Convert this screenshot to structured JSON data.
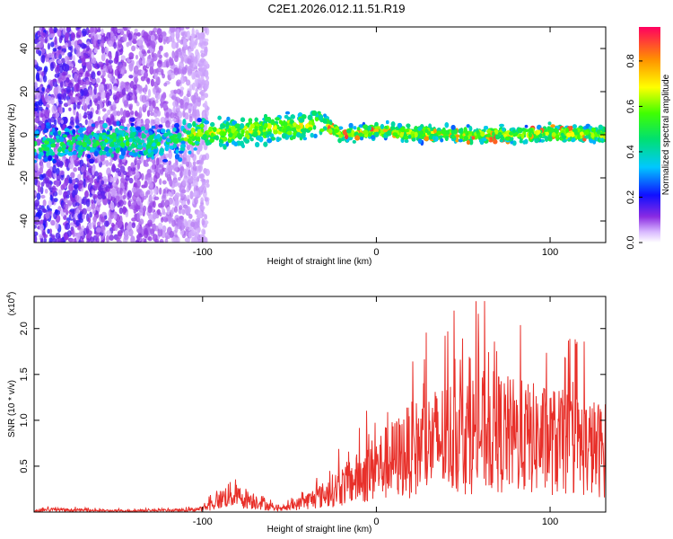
{
  "title": "C2E1.2026.012.11.51.R19",
  "chart_data": [
    {
      "type": "heatmap",
      "title": "C2E1.2026.012.11.51.R19",
      "xlabel": "Height of straight line (km)",
      "ylabel": "Frequency (Hz)",
      "xlim": [
        -197,
        132
      ],
      "ylim": [
        -50,
        50
      ],
      "xticks": [
        -100,
        0,
        100
      ],
      "yticks": [
        -40,
        -20,
        0,
        20,
        40
      ],
      "colorbar": {
        "label": "Normalized spectral amplitude",
        "range": [
          0.0,
          0.95
        ],
        "ticks": [
          0.0,
          0.2,
          0.4,
          0.6,
          0.8
        ],
        "colormap": "rainbow (violet to red)"
      },
      "description_points": {
        "ridge_x_km": [
          -197,
          -150,
          -120,
          -100,
          -80,
          -60,
          -40,
          -30,
          -20,
          0,
          20,
          50,
          80,
          100,
          132
        ],
        "ridge_freq_hz": [
          -5,
          -3,
          -4,
          1,
          1,
          3,
          4,
          5,
          0,
          2,
          1,
          0,
          0,
          1,
          0
        ]
      }
    },
    {
      "type": "line",
      "xlabel": "Height of straight line (km)",
      "ylabel": "SNR (10 * v/v)",
      "yscale_label": "(x10^4)",
      "xlim": [
        -197,
        132
      ],
      "ylim": [
        0,
        2.35
      ],
      "xticks": [
        -100,
        0,
        100
      ],
      "yticks": [
        0.5,
        1.0,
        1.5,
        2.0
      ],
      "color": "#e8302a",
      "envelope": {
        "x": [
          -197,
          -190,
          -150,
          -110,
          -100,
          -95,
          -85,
          -75,
          -65,
          -60,
          -55,
          -50,
          -40,
          -30,
          -20,
          -10,
          0,
          10,
          20,
          30,
          40,
          50,
          60,
          70,
          80,
          90,
          100,
          110,
          120,
          132
        ],
        "y": [
          0.01,
          0.04,
          0.02,
          0.03,
          0.05,
          0.12,
          0.28,
          0.22,
          0.15,
          0.06,
          0.04,
          0.08,
          0.18,
          0.28,
          0.42,
          0.55,
          0.72,
          0.85,
          1.0,
          1.1,
          1.2,
          1.25,
          1.3,
          1.28,
          1.22,
          1.18,
          1.15,
          1.1,
          1.05,
          1.0
        ]
      },
      "peak_max": 2.3
    }
  ],
  "tick_labels": {
    "x": [
      "-100",
      "0",
      "100"
    ],
    "y_top": [
      "-40",
      "-20",
      "0",
      "20",
      "40"
    ],
    "y_bottom": [
      "0.5",
      "1.0",
      "1.5",
      "2.0"
    ],
    "colorbar": [
      "0.0",
      "0.2",
      "0.4",
      "0.6",
      "0.8"
    ]
  },
  "labels": {
    "xlabel": "Height of straight line (km)",
    "ylabel_top": "Frequency (Hz)",
    "ylabel_bottom": "SNR (10 * v/v)",
    "yscale": "(x10",
    "yscale_exp": "4",
    "yscale_close": ")",
    "colorbar": "Normalized spectral amplitude"
  }
}
